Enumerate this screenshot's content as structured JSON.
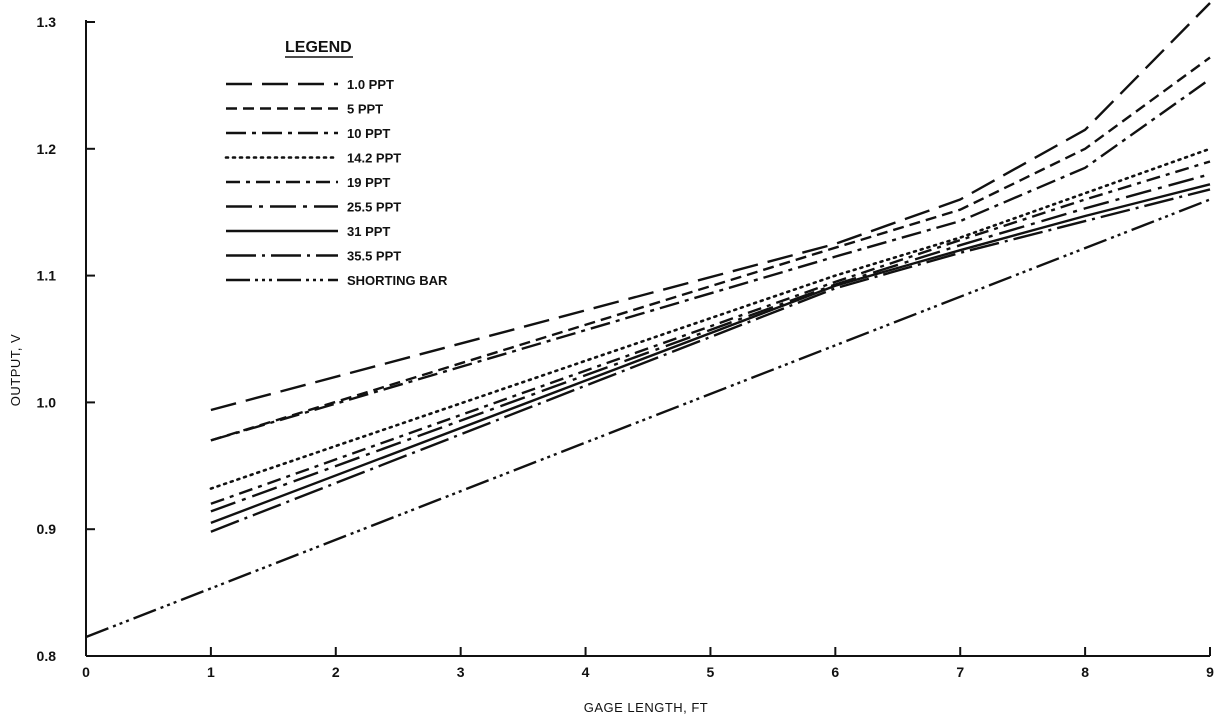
{
  "chart_data": {
    "type": "line",
    "xlabel": "GAGE LENGTH, FT",
    "ylabel": "OUTPUT, V",
    "xlim": [
      0,
      9
    ],
    "ylim": [
      0.8,
      1.3
    ],
    "x_ticks": [
      "0",
      "1",
      "2",
      "3",
      "4",
      "5",
      "6",
      "7",
      "8",
      "9"
    ],
    "y_ticks": [
      "0.8",
      "0.9",
      "1.0",
      "1.1",
      "1.2",
      "1.3"
    ],
    "grid": false,
    "legend": {
      "title": "LEGEND",
      "placement": "top-left"
    },
    "series": [
      {
        "name": "1.0 PPT",
        "style": "long-dash",
        "points": [
          [
            1,
            0.994
          ],
          [
            6,
            1.125
          ],
          [
            7,
            1.16
          ],
          [
            8,
            1.215
          ],
          [
            9,
            1.315
          ]
        ]
      },
      {
        "name": "5 PPT",
        "style": "dash",
        "points": [
          [
            1,
            0.97
          ],
          [
            6,
            1.122
          ],
          [
            7,
            1.152
          ],
          [
            8,
            1.2
          ],
          [
            9,
            1.272
          ]
        ]
      },
      {
        "name": "10 PPT",
        "style": "dash-dot",
        "points": [
          [
            1,
            0.97
          ],
          [
            6,
            1.115
          ],
          [
            7,
            1.143
          ],
          [
            8,
            1.185
          ],
          [
            9,
            1.255
          ]
        ]
      },
      {
        "name": "14.2 PPT",
        "style": "dotted",
        "points": [
          [
            1,
            0.932
          ],
          [
            6,
            1.1
          ],
          [
            7,
            1.13
          ],
          [
            8,
            1.165
          ],
          [
            9,
            1.2
          ]
        ]
      },
      {
        "name": "19 PPT",
        "style": "dash-dot-long",
        "points": [
          [
            1,
            0.92
          ],
          [
            6,
            1.095
          ],
          [
            7,
            1.128
          ],
          [
            8,
            1.16
          ],
          [
            9,
            1.19
          ]
        ]
      },
      {
        "name": "25.5 PPT",
        "style": "long-dash-dot",
        "points": [
          [
            1,
            0.914
          ],
          [
            6,
            1.093
          ],
          [
            7,
            1.124
          ],
          [
            8,
            1.153
          ],
          [
            9,
            1.18
          ]
        ]
      },
      {
        "name": "31 PPT",
        "style": "solid",
        "points": [
          [
            1,
            0.905
          ],
          [
            6,
            1.092
          ],
          [
            7,
            1.12
          ],
          [
            8,
            1.147
          ],
          [
            9,
            1.172
          ]
        ]
      },
      {
        "name": "35.5 PPT",
        "style": "long-dash-dot-fine",
        "points": [
          [
            1,
            0.898
          ],
          [
            6,
            1.09
          ],
          [
            7,
            1.118
          ],
          [
            8,
            1.143
          ],
          [
            9,
            1.168
          ]
        ]
      },
      {
        "name": "SHORTING BAR",
        "style": "dash-triple-dot",
        "points": [
          [
            0,
            0.815
          ],
          [
            9,
            1.16
          ]
        ]
      }
    ]
  }
}
